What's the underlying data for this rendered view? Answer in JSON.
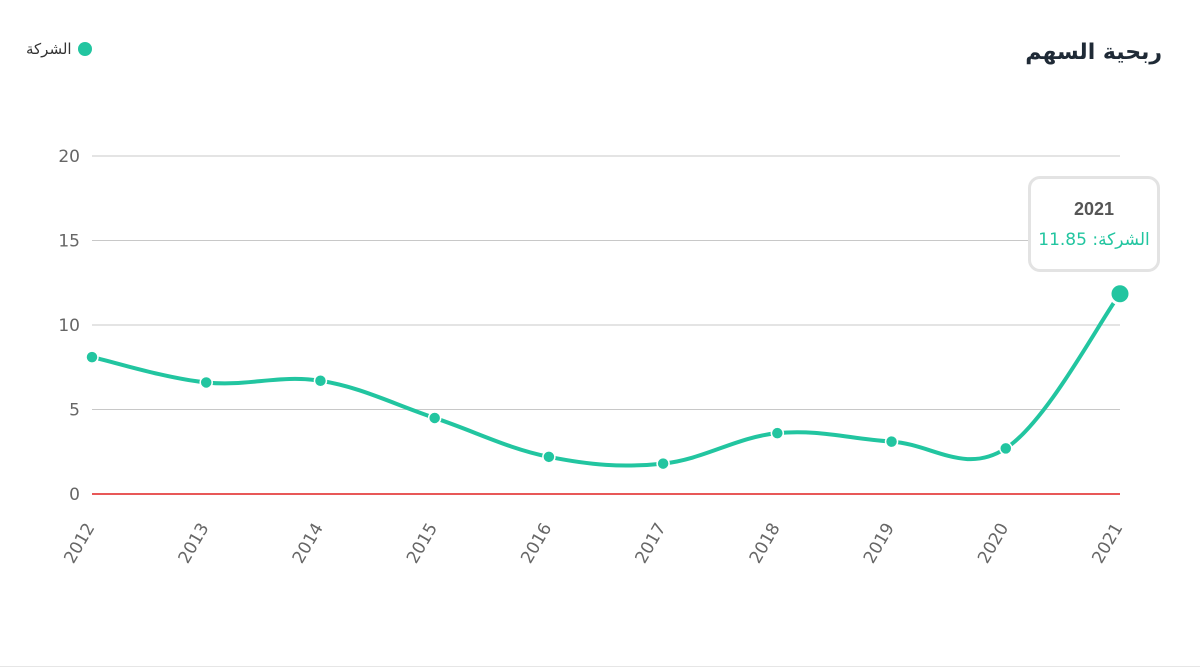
{
  "header": {
    "title": "ربحية السهم"
  },
  "legend": {
    "label": "الشركة",
    "color": "#22c5a0"
  },
  "tooltip": {
    "year": "2021",
    "series_label": "الشركة:",
    "value": "11.85"
  },
  "colors": {
    "series": "#22c5a0",
    "zero_line": "#e02020",
    "grid": "#c8c8c8"
  },
  "chart_data": {
    "type": "line",
    "title": "ربحية السهم",
    "xlabel": "",
    "ylabel": "",
    "x": [
      "2012",
      "2013",
      "2014",
      "2015",
      "2016",
      "2017",
      "2018",
      "2019",
      "2020",
      "2021"
    ],
    "y_ticks": [
      "0",
      "5",
      "10",
      "15",
      "20"
    ],
    "ylim": [
      0,
      20
    ],
    "grid": true,
    "legend_position": "top-left",
    "series": [
      {
        "name": "الشركة",
        "values": [
          8.1,
          6.6,
          6.7,
          4.5,
          2.2,
          1.8,
          3.6,
          3.1,
          2.7,
          11.85
        ]
      }
    ]
  }
}
